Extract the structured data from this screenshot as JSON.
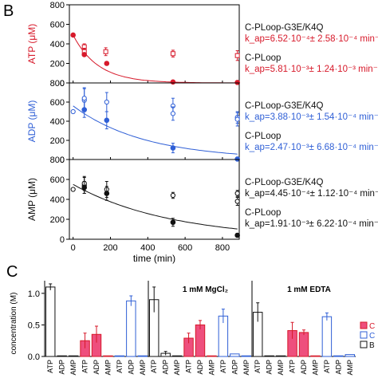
{
  "panel_labels": {
    "b": "B",
    "c": "C"
  },
  "colors": {
    "red": "#d7192a",
    "blue": "#2f5fd6",
    "black": "#111111",
    "pink": "#ee4f7d"
  },
  "chart_data": [
    {
      "type": "scatter",
      "panel": "B-top",
      "ylabel": "ATP (μM)",
      "ylabel_color": "#d7192a",
      "ylim": [
        0,
        800
      ],
      "yticks": [
        "0",
        "200",
        "400",
        "600",
        "800"
      ],
      "xlim": [
        -20,
        890
      ],
      "color": "#d7192a",
      "series": [
        {
          "name": "C-PLoop-G3E/K4Q",
          "marker": "open-square",
          "x": [
            60,
            60,
            175,
            535,
            880
          ],
          "y": [
            370,
            320,
            320,
            300,
            280
          ],
          "err": [
            30,
            35,
            40,
            35,
            50
          ]
        },
        {
          "name": "C-PLoop",
          "marker": "filled-circle",
          "x": [
            0,
            60,
            180,
            535,
            880
          ],
          "y": [
            490,
            290,
            200,
            10,
            5
          ],
          "err": [
            0,
            0,
            0,
            0,
            0
          ]
        }
      ],
      "fit": {
        "series": "C-PLoop",
        "y0": 490,
        "k": 0.0075
      },
      "annotations": [
        {
          "text": "C-PLoop-G3E/K4Q",
          "color": "#111111"
        },
        {
          "text": "k_ap=6.52·10⁻⁴± 2.58·10⁻⁴ min⁻¹",
          "color": "#d7192a"
        },
        {
          "text": "C-PLoop",
          "color": "#111111"
        },
        {
          "text": "k_ap=5.81·10⁻³± 1.24·10⁻³ min⁻¹",
          "color": "#d7192a"
        }
      ]
    },
    {
      "type": "scatter",
      "panel": "B-middle",
      "ylabel": "ADP (μM)",
      "ylabel_color": "#2f5fd6",
      "ylim": [
        0,
        800
      ],
      "yticks": [
        "0",
        "200",
        "400",
        "600",
        "800"
      ],
      "xlim": [
        -20,
        890
      ],
      "color": "#2f5fd6",
      "series": [
        {
          "name": "C-PLoop-G3E/K4Q",
          "marker": "open-circle",
          "x": [
            0,
            60,
            60,
            180,
            535,
            535,
            880,
            880
          ],
          "y": [
            500,
            620,
            640,
            600,
            560,
            480,
            440,
            420
          ],
          "err": [
            0,
            120,
            110,
            100,
            80,
            70,
            60,
            70
          ]
        },
        {
          "name": "C-PLoop",
          "marker": "filled-circle",
          "x": [
            60,
            180,
            535,
            880
          ],
          "y": [
            520,
            410,
            120,
            5
          ],
          "err": [
            80,
            90,
            50,
            0
          ]
        }
      ],
      "fit": {
        "series": "C-PLoop",
        "y0": 560,
        "k": 0.0026
      },
      "annotations": [
        {
          "text": "C-PLoop-G3E/K4Q",
          "color": "#111111"
        },
        {
          "text": "k_ap=3.88·10⁻³± 1.54·10⁻⁴ min⁻¹",
          "color": "#2f5fd6"
        },
        {
          "text": "C-PLoop",
          "color": "#111111"
        },
        {
          "text": "k_ap=2.47·10⁻³± 6.68·10⁻⁴ min⁻¹",
          "color": "#2f5fd6"
        }
      ]
    },
    {
      "type": "scatter",
      "panel": "B-bottom",
      "ylabel": "AMP (μM)",
      "ylabel_color": "#111111",
      "ylim": [
        0,
        800
      ],
      "yticks": [
        "0",
        "200",
        "400",
        "600",
        "800"
      ],
      "xlim": [
        -20,
        890
      ],
      "xlabel": "time (min)",
      "xticks": [
        "0",
        "200",
        "400",
        "600",
        "800"
      ],
      "color": "#111111",
      "series": [
        {
          "name": "C-PLoop-G3E/K4Q",
          "marker": "open-circle",
          "x": [
            0,
            60,
            60,
            180,
            535,
            880,
            880
          ],
          "y": [
            500,
            540,
            560,
            500,
            440,
            460,
            380
          ],
          "err": [
            0,
            80,
            70,
            80,
            30,
            30,
            40
          ]
        },
        {
          "name": "C-PLoop",
          "marker": "filled-circle",
          "x": [
            60,
            180,
            535,
            880
          ],
          "y": [
            520,
            460,
            170,
            40
          ],
          "err": [
            60,
            70,
            40,
            0
          ]
        }
      ],
      "fit": {
        "series": "C-PLoop",
        "y0": 550,
        "k": 0.0019
      },
      "annotations": [
        {
          "text": "C-PLoop-G3E/K4Q",
          "color": "#111111"
        },
        {
          "text": "k_ap=4.45·10⁻⁴± 1.12·10⁻⁴ min⁻¹",
          "color": "#111111"
        },
        {
          "text": "C-PLoop",
          "color": "#111111"
        },
        {
          "text": "k_ap=1.91·10⁻³± 6.22·10⁻⁴ min⁻¹",
          "color": "#111111"
        }
      ]
    },
    {
      "type": "bar",
      "panel": "C",
      "ylabel": "concentration (M)",
      "ylim": [
        0,
        1.2
      ],
      "yticks": [
        "0.0",
        "0.5",
        "1.0"
      ],
      "groups": [
        {
          "label": "",
          "categories": [
            "ATP",
            "ADP",
            "AMP",
            "ATP",
            "ADP",
            "AMP",
            "ATP",
            "ADP",
            "AMP"
          ]
        },
        {
          "label": "1 mM MgCl₂",
          "categories": [
            "ATP",
            "ADP",
            "AMP",
            "ATP",
            "ADP",
            "AMP",
            "ATP",
            "ADP",
            "AMP"
          ]
        },
        {
          "label": "1 mM EDTA",
          "categories": [
            "ATP",
            "ADP",
            "AMP",
            "ATP",
            "ADP",
            "AMP",
            "ATP",
            "ADP",
            "AMP"
          ]
        }
      ],
      "series": [
        {
          "name": "C",
          "style": "filled-pink",
          "values": [
            [
              0.25,
              0.35,
              0.0
            ],
            [
              0.29,
              0.5,
              0.0
            ],
            [
              0.41,
              0.38,
              0.0
            ]
          ],
          "err": [
            [
              0.12,
              0.13,
              0.0
            ],
            [
              0.08,
              0.07,
              0.0
            ],
            [
              0.13,
              0.04,
              0.0
            ]
          ]
        },
        {
          "name": "C",
          "style": "open-blue",
          "values": [
            [
              0.0,
              0.88,
              0.0
            ],
            [
              0.64,
              0.04,
              0.0
            ],
            [
              0.63,
              0.0,
              0.03
            ]
          ],
          "err": [
            [
              0.0,
              0.08,
              0.0
            ],
            [
              0.11,
              0.0,
              0.0
            ],
            [
              0.06,
              0.0,
              0.0
            ]
          ]
        },
        {
          "name": "B",
          "style": "open-black",
          "values": [
            [
              1.1,
              0.0,
              0.0
            ],
            [
              0.9,
              0.05,
              0.0
            ],
            [
              0.7,
              0.0,
              0.0
            ]
          ],
          "err": [
            [
              0.05,
              0.0,
              0.0
            ],
            [
              0.2,
              0.03,
              0.0
            ],
            [
              0.15,
              0.0,
              0.0
            ]
          ]
        }
      ],
      "legend": [
        {
          "text": "C",
          "style": "filled-pink"
        },
        {
          "text": "C",
          "style": "open-blue"
        },
        {
          "text": "B",
          "style": "open-black"
        }
      ]
    }
  ]
}
